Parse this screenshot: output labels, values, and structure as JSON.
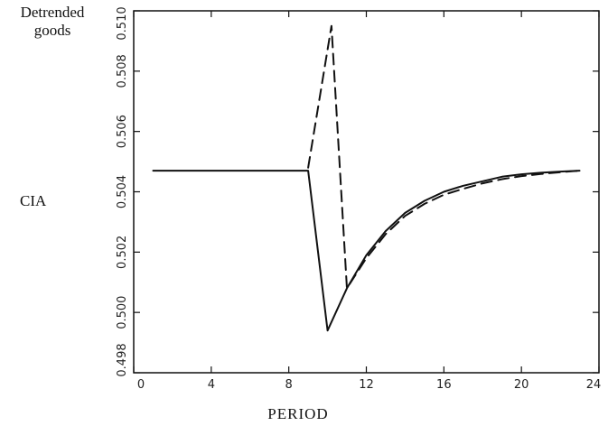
{
  "labels": {
    "series_title_line1": "Detrended",
    "series_title_line2": "goods",
    "model": "CIA"
  },
  "chart_data": {
    "type": "line",
    "xlabel": "PERIOD",
    "ylabel": "",
    "xlim": [
      0,
      24
    ],
    "ylim": [
      0.498,
      0.51
    ],
    "xticks": [
      0,
      4,
      8,
      12,
      16,
      20,
      24
    ],
    "xtick_labels": [
      "0",
      "4",
      "8",
      "12",
      "16",
      "20",
      "24"
    ],
    "yticks": [
      0.498,
      0.5,
      0.502,
      0.504,
      0.506,
      0.508,
      0.51
    ],
    "ytick_labels": [
      "0.498",
      "0.500",
      "0.502",
      "0.504",
      "0.506",
      "0.508",
      "0.510"
    ],
    "grid": false,
    "series": [
      {
        "style": "solid",
        "color": "#111111",
        "x": [
          1,
          9,
          10,
          11,
          12,
          13,
          14,
          15,
          16,
          17,
          18,
          19,
          20,
          21,
          22,
          23
        ],
        "y": [
          0.5047,
          0.5047,
          0.4994,
          0.5008,
          0.5019,
          0.5027,
          0.5033,
          0.5037,
          0.504,
          0.5042,
          0.50435,
          0.5045,
          0.50458,
          0.50463,
          0.50467,
          0.5047
        ]
      },
      {
        "style": "dashed",
        "color": "#111111",
        "x": [
          9,
          10.2,
          11,
          12,
          13,
          14,
          15,
          16,
          17,
          18,
          19,
          20,
          21,
          22,
          23
        ],
        "y": [
          0.5048,
          0.5095,
          0.5008,
          0.5018,
          0.5026,
          0.5032,
          0.5036,
          0.5039,
          0.5041,
          0.50428,
          0.50442,
          0.50452,
          0.50459,
          0.50465,
          0.5047
        ]
      }
    ]
  }
}
